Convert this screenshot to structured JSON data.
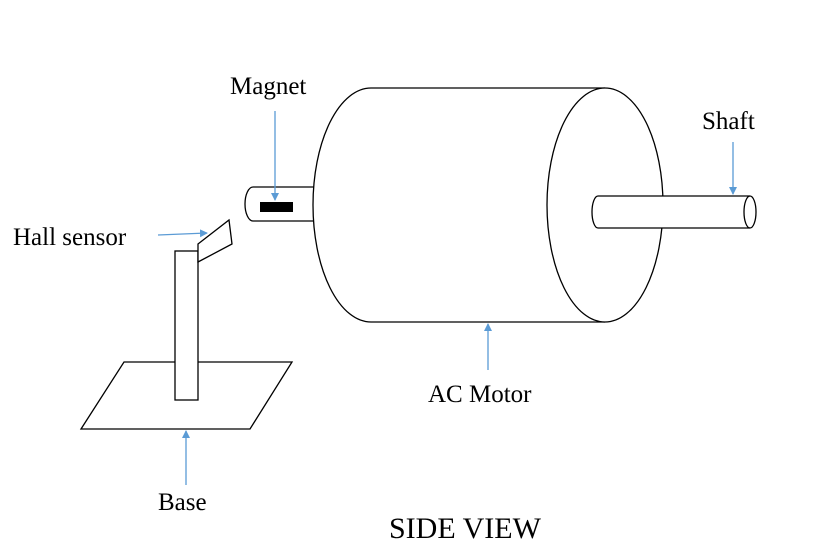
{
  "labels": {
    "magnet": "Magnet",
    "shaft": "Shaft",
    "hall_sensor": "Hall sensor",
    "ac_motor": "AC Motor",
    "base": "Base"
  },
  "title": "SIDE VIEW",
  "colors": {
    "arrow": "#5b9bd5",
    "outline": "#000000",
    "magnet_fill": "#000000"
  }
}
